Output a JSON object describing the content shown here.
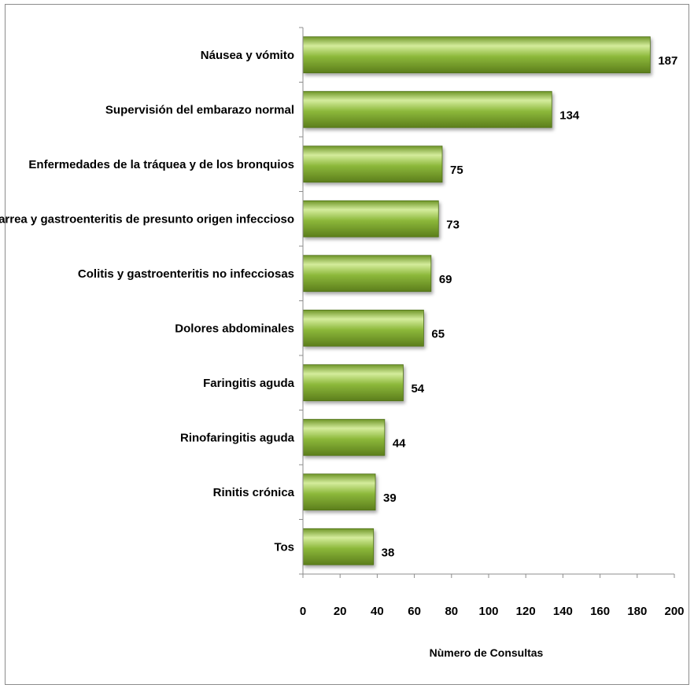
{
  "chart_data": {
    "type": "bar",
    "orientation": "horizontal",
    "categories": [
      "Náusea y vómito",
      "Supervisión del embarazo normal",
      "Enfermedades de la tráquea y de los bronquios",
      "Diarrea y gastroenteritis de presunto origen infeccioso",
      "Colitis y gastroenteritis no infecciosas",
      "Dolores abdominales",
      "Faringitis aguda",
      "Rinofaringitis aguda",
      "Rinitis crónica",
      "Tos"
    ],
    "values": [
      187,
      134,
      75,
      73,
      69,
      65,
      54,
      44,
      39,
      38
    ],
    "xlabel": "Nùmero de Consultas",
    "ylabel": "",
    "xlim": [
      0,
      200
    ],
    "ticks": [
      "0",
      "20",
      "40",
      "60",
      "80",
      "100",
      "120",
      "140",
      "160",
      "180",
      "200"
    ],
    "data_labels": true,
    "grid": false,
    "legend": "none",
    "bar_color": "#8cb83a",
    "bar_highlight": "#d4ec9c",
    "bar_shadow": "#5c7e1c"
  }
}
